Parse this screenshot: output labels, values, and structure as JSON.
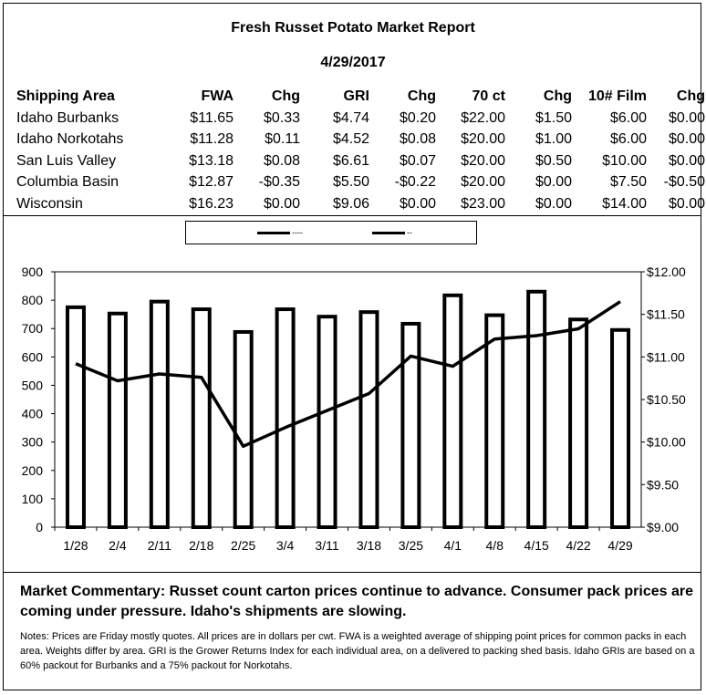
{
  "report": {
    "title": "Fresh Russet Potato Market Report",
    "date": "4/29/2017"
  },
  "table": {
    "headers": [
      "Shipping Area",
      "FWA",
      "Chg",
      "GRI",
      "Chg",
      "70 ct",
      "Chg",
      "10# Film",
      "Chg"
    ],
    "rows": [
      [
        "Idaho Burbanks",
        "$11.65",
        "$0.33",
        "$4.74",
        "$0.20",
        "$22.00",
        "$1.50",
        "$6.00",
        "$0.00"
      ],
      [
        "Idaho Norkotahs",
        "$11.28",
        "$0.11",
        "$4.52",
        "$0.08",
        "$20.00",
        "$1.00",
        "$6.00",
        "$0.00"
      ],
      [
        "San Luis Valley",
        "$13.18",
        "$0.08",
        "$6.61",
        "$0.07",
        "$20.00",
        "$0.50",
        "$10.00",
        "$0.00"
      ],
      [
        "Columbia Basin",
        "$12.87",
        "-$0.35",
        "$5.50",
        "-$0.22",
        "$20.00",
        "$0.00",
        "$7.50",
        "-$0.50"
      ],
      [
        "Wisconsin",
        "$16.23",
        "$0.00",
        "$9.06",
        "$0.00",
        "$23.00",
        "$0.00",
        "$14.00",
        "$0.00"
      ]
    ]
  },
  "legend": {
    "bar_label": "----",
    "line_label": "--"
  },
  "chart_data": {
    "type": "bar",
    "title": "",
    "xlabel": "",
    "ylabel": "",
    "categories": [
      "1/28",
      "2/4",
      "2/11",
      "2/18",
      "2/25",
      "3/4",
      "3/11",
      "3/18",
      "3/25",
      "4/1",
      "4/8",
      "4/15",
      "4/22",
      "4/29"
    ],
    "series": [
      {
        "type": "bar",
        "axis": "left",
        "values": [
          775,
          753,
          795,
          768,
          688,
          768,
          742,
          758,
          717,
          817,
          747,
          830,
          732,
          695
        ]
      },
      {
        "type": "line",
        "axis": "right",
        "values": [
          10.92,
          10.72,
          10.8,
          10.76,
          9.95,
          10.17,
          10.37,
          10.57,
          11.01,
          10.89,
          11.21,
          11.25,
          11.33,
          11.65
        ]
      }
    ],
    "ylim_left": [
      0,
      900
    ],
    "ylim_right": [
      9.0,
      12.0
    ],
    "yticks_left": [
      "0",
      "100",
      "200",
      "300",
      "400",
      "500",
      "600",
      "700",
      "800",
      "900"
    ],
    "yticks_right": [
      "$9.00",
      "$9.50",
      "$10.00",
      "$10.50",
      "$11.00",
      "$11.50",
      "$12.00"
    ],
    "grid": false,
    "legend_position": "top-center"
  },
  "commentary": "Market Commentary: Russet count carton prices continue to advance. Consumer pack prices are coming under pressure. Idaho's shipments are slowing.",
  "notes": "Notes: Prices are Friday mostly quotes. All prices are in dollars per cwt. FWA is a weighted average of shipping point prices for  common packs in each area. Weights differ by area. GRI is the Grower Returns Index for each individual area, on a delivered to packing shed basis. Idaho GRIs are based on a 60% packout for Burbanks and a 75% packout for Norkotahs."
}
